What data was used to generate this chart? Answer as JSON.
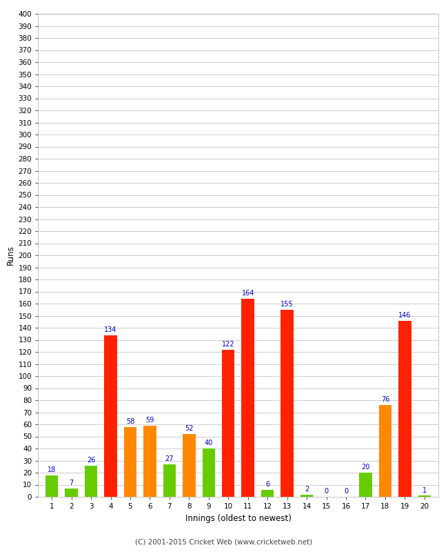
{
  "values": [
    18,
    7,
    26,
    134,
    58,
    59,
    27,
    52,
    40,
    122,
    164,
    6,
    155,
    2,
    0,
    0,
    20,
    76,
    146,
    1
  ],
  "colors": [
    "#66cc00",
    "#66cc00",
    "#66cc00",
    "#ff2200",
    "#ff8800",
    "#ff8800",
    "#66cc00",
    "#ff8800",
    "#66cc00",
    "#ff2200",
    "#ff2200",
    "#66cc00",
    "#ff2200",
    "#66cc00",
    "#66cc00",
    "#66cc00",
    "#66cc00",
    "#ff8800",
    "#ff2200",
    "#66cc00"
  ],
  "xlabel": "Innings (oldest to newest)",
  "ylabel": "Runs",
  "ylim": [
    0,
    400
  ],
  "yticks": [
    0,
    10,
    20,
    30,
    40,
    50,
    60,
    70,
    80,
    90,
    100,
    110,
    120,
    130,
    140,
    150,
    160,
    170,
    180,
    190,
    200,
    210,
    220,
    230,
    240,
    250,
    260,
    270,
    280,
    290,
    300,
    310,
    320,
    330,
    340,
    350,
    360,
    370,
    380,
    390,
    400
  ],
  "xticks": [
    1,
    2,
    3,
    4,
    5,
    6,
    7,
    8,
    9,
    10,
    11,
    12,
    13,
    14,
    15,
    16,
    17,
    18,
    19,
    20
  ],
  "label_color": "#0000cc",
  "background_color": "#ffffff",
  "grid_color": "#cccccc",
  "footer": "(C) 2001-2015 Cricket Web (www.cricketweb.net)",
  "bar_width": 0.65
}
